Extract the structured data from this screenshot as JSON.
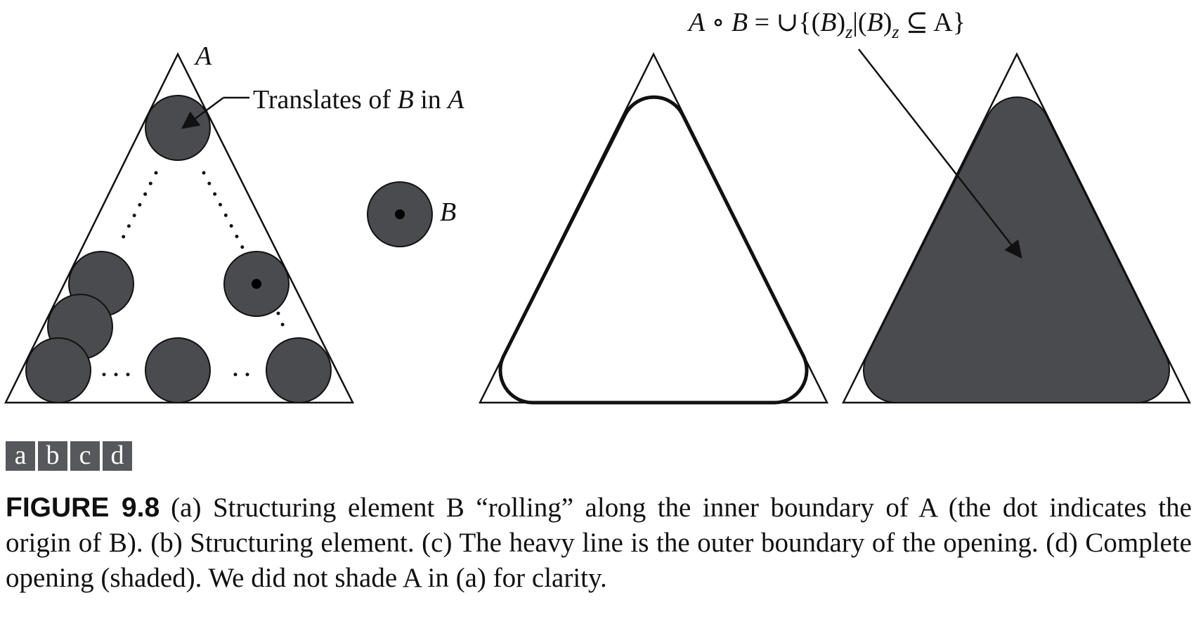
{
  "labels": {
    "A": "A",
    "translates_prefix": "Translates of ",
    "translates_B": "B",
    "translates_in": " in ",
    "translates_A": "A",
    "B": "B"
  },
  "formula": {
    "lhs_A": "A",
    "op": " ∘ ",
    "lhs_B": "B",
    "eq": " = ∪{(",
    "B1": "B",
    "close1": ")",
    "sub1": "z",
    "bar": "|(",
    "B2": "B",
    "close2": ")",
    "sub2": "z",
    "subset": " ⊆ A}"
  },
  "panels": [
    "a",
    "b",
    "c",
    "d"
  ],
  "caption": {
    "figure_number": "FIGURE 9.8",
    "text": "(a) Structuring element B “rolling” along the inner boundary of A (the dot indicates the origin of B). (b) Structuring element. (c) The heavy line is the outer boundary of the opening. (d) Complete opening (shaded). We did not shade A in (a) for clarity."
  },
  "colors": {
    "disk_fill": "#4a4b4e",
    "tag_fill": "#56585b",
    "stroke": "#111111"
  }
}
